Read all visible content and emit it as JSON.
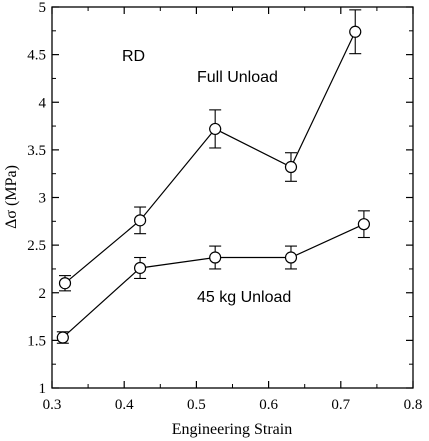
{
  "chart_data": {
    "type": "scatter",
    "xlabel": "Engineering Strain",
    "ylabel": "Δσ (MPa)",
    "xlim": [
      0.3,
      0.8
    ],
    "ylim": [
      1,
      5
    ],
    "x_ticks": [
      "0.3",
      "0.4",
      "0.5",
      "0.6",
      "0.7",
      "0.8"
    ],
    "y_ticks": [
      "1",
      "1.5",
      "2",
      "2.5",
      "3",
      "3.5",
      "4",
      "4.5",
      "5"
    ],
    "grid": false,
    "annotations": [
      "RD",
      "Full Unload",
      "45 kg Unload"
    ],
    "series": [
      {
        "name": "Full Unload",
        "points": [
          {
            "x": 0.318,
            "y": 2.1,
            "err": 0.08
          },
          {
            "x": 0.422,
            "y": 2.76,
            "err": 0.14
          },
          {
            "x": 0.526,
            "y": 3.72,
            "err": 0.2
          },
          {
            "x": 0.631,
            "y": 3.32,
            "err": 0.15
          },
          {
            "x": 0.72,
            "y": 4.74,
            "err": 0.23
          }
        ]
      },
      {
        "name": "45 kg Unload",
        "points": [
          {
            "x": 0.315,
            "y": 1.53,
            "err": 0.06
          },
          {
            "x": 0.422,
            "y": 2.26,
            "err": 0.11
          },
          {
            "x": 0.526,
            "y": 2.37,
            "err": 0.12
          },
          {
            "x": 0.631,
            "y": 2.37,
            "err": 0.12
          },
          {
            "x": 0.732,
            "y": 2.72,
            "err": 0.14
          }
        ]
      }
    ]
  }
}
